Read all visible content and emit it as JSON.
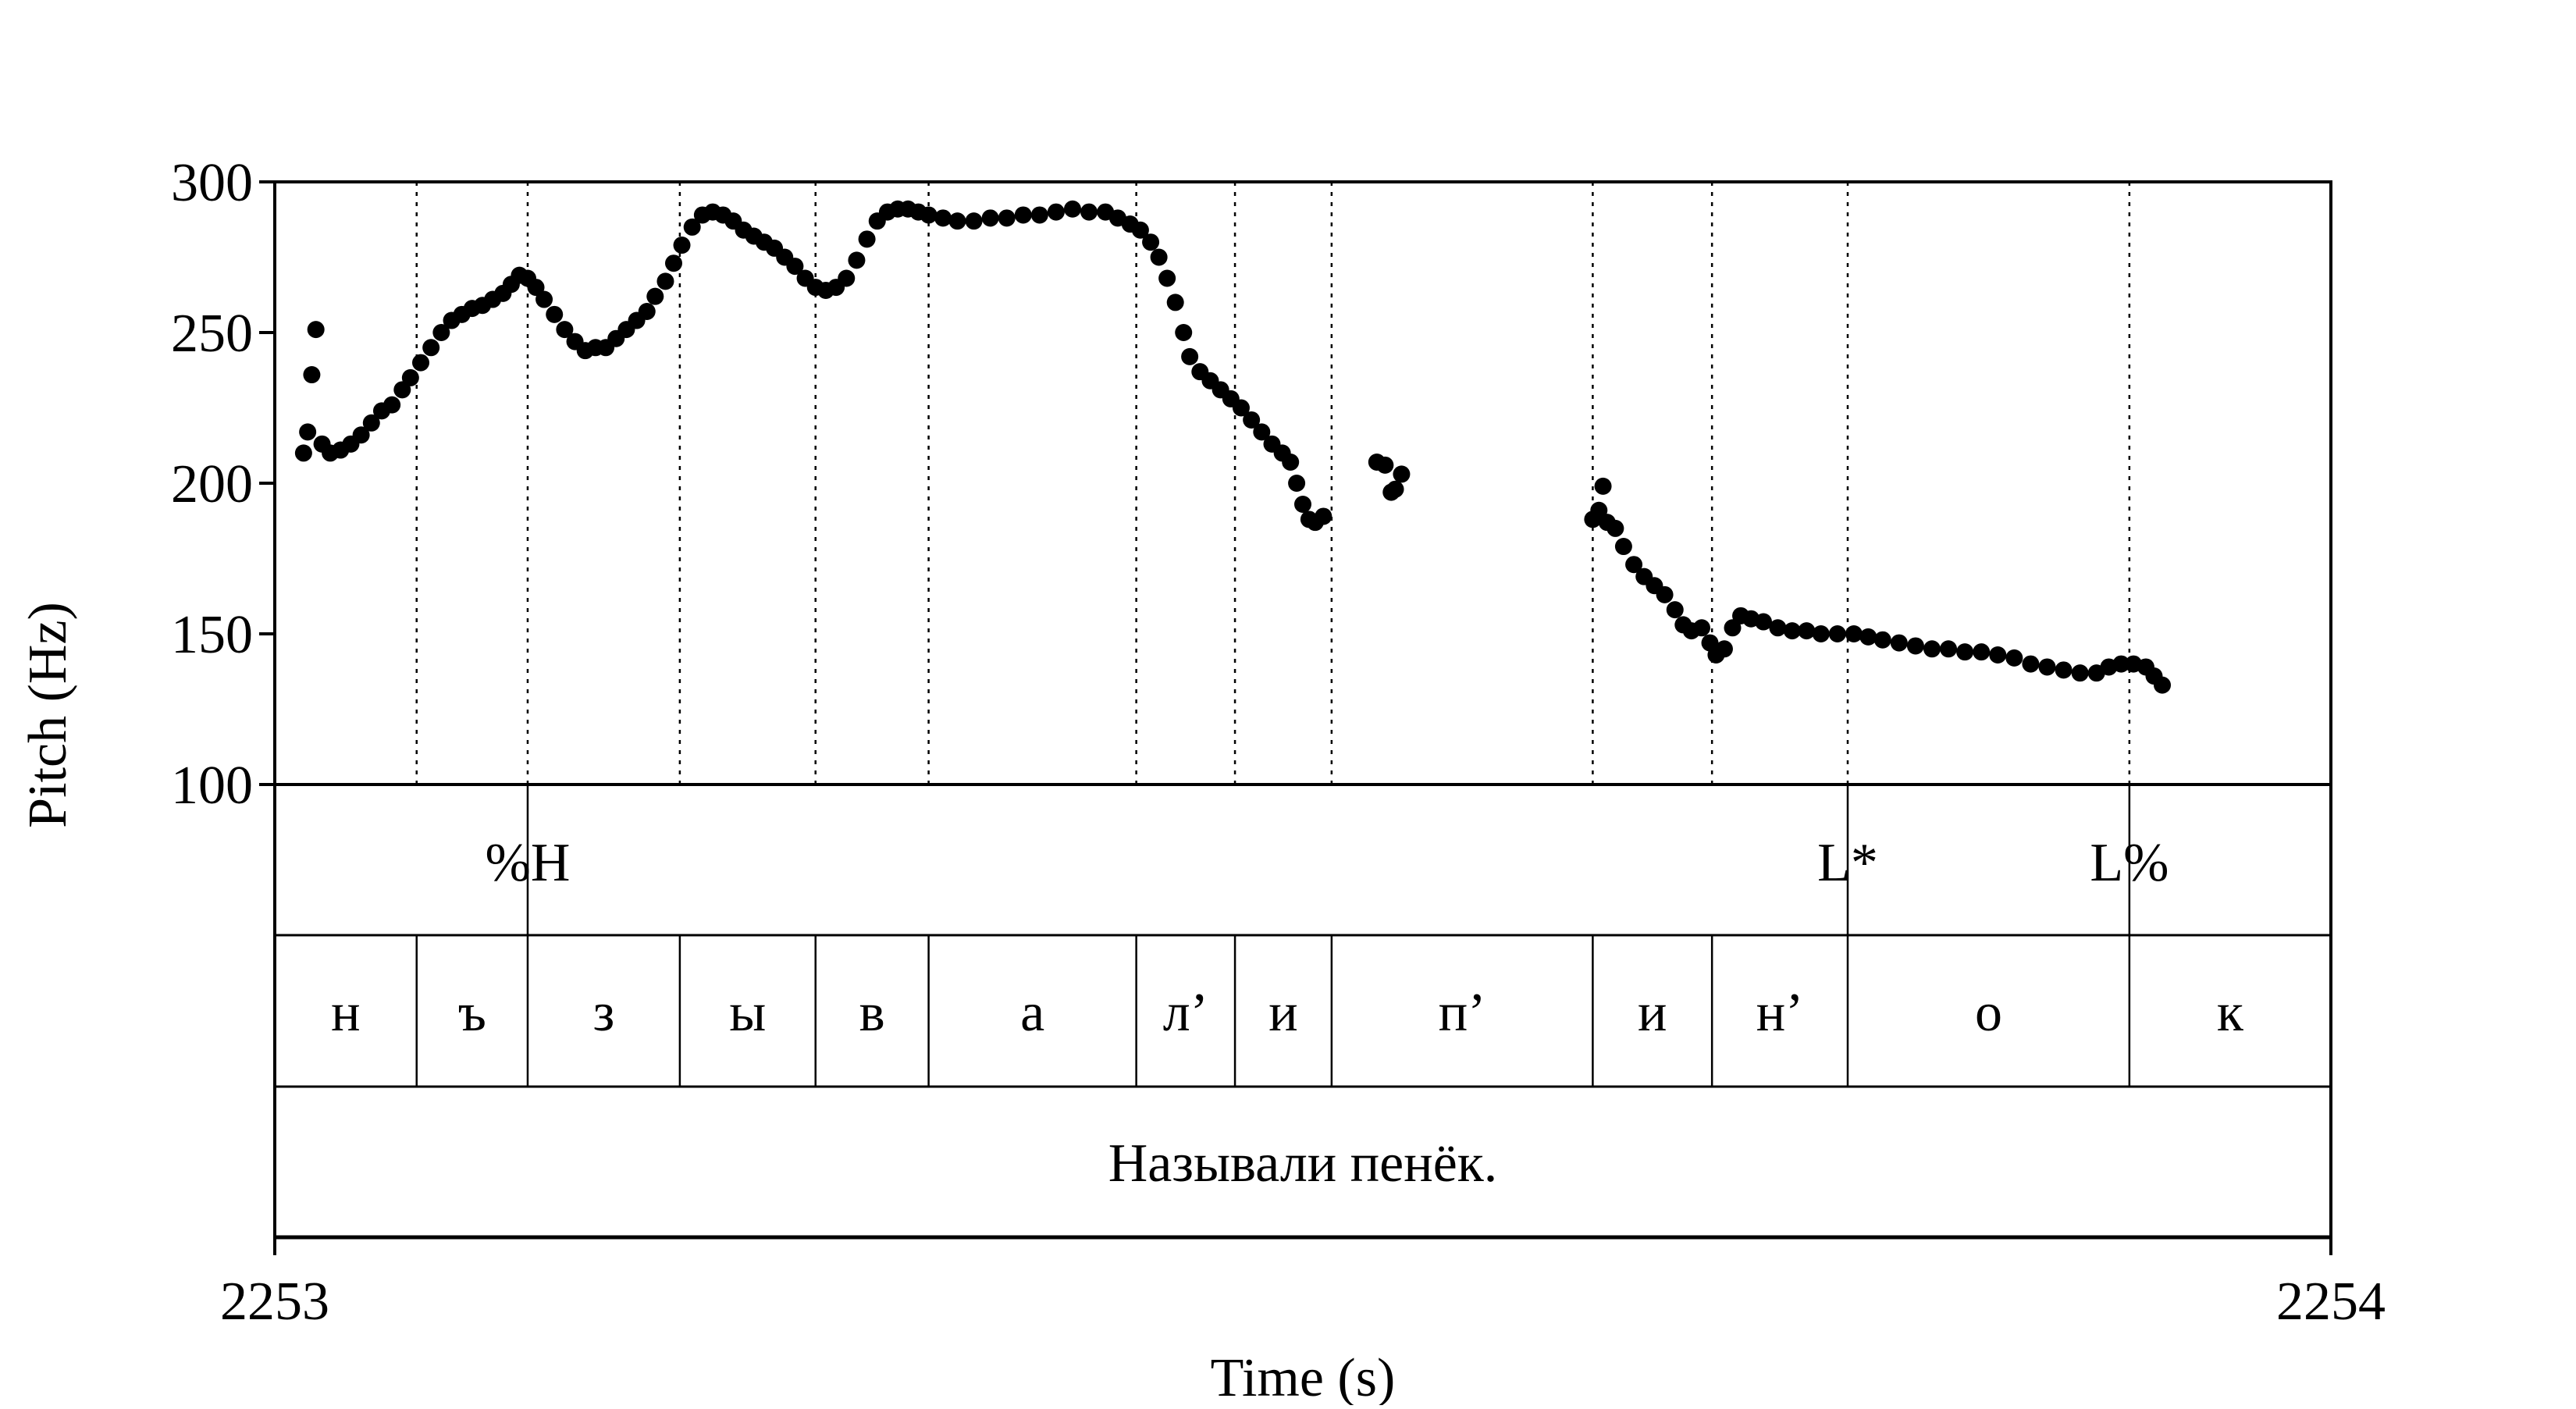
{
  "chart_data": {
    "type": "scatter",
    "title": "",
    "xlabel": "Time (s)",
    "ylabel": "Pitch (Hz)",
    "xlim": [
      2253,
      2254
    ],
    "ylim": [
      100,
      300
    ],
    "x_ticks": [
      "2253",
      "2254"
    ],
    "y_ticks": [
      "100",
      "150",
      "200",
      "250",
      "300"
    ],
    "grid": false,
    "marker_color": "#000000",
    "boundaries": [
      2253.069,
      2253.123,
      2253.197,
      2253.263,
      2253.318,
      2253.419,
      2253.467,
      2253.514,
      2253.641,
      2253.699,
      2253.765,
      2253.902
    ],
    "tones": [
      {
        "label": "%H",
        "time": 2253.123
      },
      {
        "label": "L*",
        "time": 2253.765
      },
      {
        "label": "L%",
        "time": 2253.902
      }
    ],
    "segments": [
      {
        "label": "н",
        "start": 2253.0,
        "end": 2253.069
      },
      {
        "label": "ъ",
        "start": 2253.069,
        "end": 2253.123
      },
      {
        "label": "з",
        "start": 2253.123,
        "end": 2253.197
      },
      {
        "label": "ы",
        "start": 2253.197,
        "end": 2253.263
      },
      {
        "label": "в",
        "start": 2253.263,
        "end": 2253.318
      },
      {
        "label": "а",
        "start": 2253.318,
        "end": 2253.419
      },
      {
        "label": "л’",
        "start": 2253.419,
        "end": 2253.467
      },
      {
        "label": "и",
        "start": 2253.467,
        "end": 2253.514
      },
      {
        "label": "п’",
        "start": 2253.514,
        "end": 2253.641
      },
      {
        "label": "и",
        "start": 2253.641,
        "end": 2253.699
      },
      {
        "label": "н’",
        "start": 2253.699,
        "end": 2253.765
      },
      {
        "label": "о",
        "start": 2253.765,
        "end": 2253.902
      },
      {
        "label": "к",
        "start": 2253.902,
        "end": 2254.0
      }
    ],
    "utterance": "Называли пенёк.",
    "pitch_points": [
      [
        2253.014,
        210
      ],
      [
        2253.016,
        217
      ],
      [
        2253.018,
        236
      ],
      [
        2253.02,
        251
      ],
      [
        2253.023,
        213
      ],
      [
        2253.027,
        210
      ],
      [
        2253.032,
        211
      ],
      [
        2253.037,
        213
      ],
      [
        2253.042,
        216
      ],
      [
        2253.047,
        220
      ],
      [
        2253.052,
        224
      ],
      [
        2253.057,
        226
      ],
      [
        2253.062,
        231
      ],
      [
        2253.066,
        235
      ],
      [
        2253.071,
        240
      ],
      [
        2253.076,
        245
      ],
      [
        2253.081,
        250
      ],
      [
        2253.086,
        254
      ],
      [
        2253.091,
        256
      ],
      [
        2253.096,
        258
      ],
      [
        2253.101,
        259
      ],
      [
        2253.106,
        261
      ],
      [
        2253.111,
        263
      ],
      [
        2253.115,
        266
      ],
      [
        2253.119,
        269
      ],
      [
        2253.123,
        268
      ],
      [
        2253.127,
        265
      ],
      [
        2253.131,
        261
      ],
      [
        2253.136,
        256
      ],
      [
        2253.141,
        251
      ],
      [
        2253.146,
        247
      ],
      [
        2253.151,
        244
      ],
      [
        2253.156,
        245
      ],
      [
        2253.161,
        245
      ],
      [
        2253.166,
        248
      ],
      [
        2253.171,
        251
      ],
      [
        2253.176,
        254
      ],
      [
        2253.181,
        257
      ],
      [
        2253.185,
        262
      ],
      [
        2253.19,
        267
      ],
      [
        2253.194,
        273
      ],
      [
        2253.198,
        279
      ],
      [
        2253.203,
        285
      ],
      [
        2253.208,
        289
      ],
      [
        2253.213,
        290
      ],
      [
        2253.218,
        289
      ],
      [
        2253.223,
        287
      ],
      [
        2253.228,
        284
      ],
      [
        2253.233,
        282
      ],
      [
        2253.238,
        280
      ],
      [
        2253.243,
        278
      ],
      [
        2253.248,
        275
      ],
      [
        2253.253,
        272
      ],
      [
        2253.258,
        268
      ],
      [
        2253.263,
        265
      ],
      [
        2253.268,
        264
      ],
      [
        2253.273,
        265
      ],
      [
        2253.278,
        268
      ],
      [
        2253.283,
        274
      ],
      [
        2253.288,
        281
      ],
      [
        2253.293,
        287
      ],
      [
        2253.298,
        290
      ],
      [
        2253.303,
        291
      ],
      [
        2253.308,
        291
      ],
      [
        2253.313,
        290
      ],
      [
        2253.318,
        289
      ],
      [
        2253.325,
        288
      ],
      [
        2253.332,
        287
      ],
      [
        2253.34,
        287
      ],
      [
        2253.348,
        288
      ],
      [
        2253.356,
        288
      ],
      [
        2253.364,
        289
      ],
      [
        2253.372,
        289
      ],
      [
        2253.38,
        290
      ],
      [
        2253.388,
        291
      ],
      [
        2253.396,
        290
      ],
      [
        2253.404,
        290
      ],
      [
        2253.41,
        288
      ],
      [
        2253.416,
        286
      ],
      [
        2253.421,
        284
      ],
      [
        2253.426,
        280
      ],
      [
        2253.43,
        275
      ],
      [
        2253.434,
        268
      ],
      [
        2253.438,
        260
      ],
      [
        2253.442,
        250
      ],
      [
        2253.445,
        242
      ],
      [
        2253.45,
        237
      ],
      [
        2253.455,
        234
      ],
      [
        2253.46,
        231
      ],
      [
        2253.465,
        228
      ],
      [
        2253.47,
        225
      ],
      [
        2253.475,
        221
      ],
      [
        2253.48,
        217
      ],
      [
        2253.485,
        213
      ],
      [
        2253.49,
        210
      ],
      [
        2253.494,
        207
      ],
      [
        2253.497,
        200
      ],
      [
        2253.5,
        193
      ],
      [
        2253.503,
        188
      ],
      [
        2253.506,
        187
      ],
      [
        2253.51,
        189
      ],
      [
        2253.536,
        207
      ],
      [
        2253.54,
        206
      ],
      [
        2253.543,
        197
      ],
      [
        2253.545,
        198
      ],
      [
        2253.548,
        203
      ],
      [
        2253.641,
        188
      ],
      [
        2253.644,
        191
      ],
      [
        2253.646,
        199
      ],
      [
        2253.648,
        187
      ],
      [
        2253.652,
        185
      ],
      [
        2253.656,
        179
      ],
      [
        2253.661,
        173
      ],
      [
        2253.666,
        169
      ],
      [
        2253.671,
        166
      ],
      [
        2253.676,
        163
      ],
      [
        2253.681,
        158
      ],
      [
        2253.685,
        153
      ],
      [
        2253.689,
        151
      ],
      [
        2253.694,
        152
      ],
      [
        2253.698,
        147
      ],
      [
        2253.701,
        143
      ],
      [
        2253.705,
        145
      ],
      [
        2253.709,
        152
      ],
      [
        2253.713,
        156
      ],
      [
        2253.718,
        155
      ],
      [
        2253.724,
        154
      ],
      [
        2253.731,
        152
      ],
      [
        2253.738,
        151
      ],
      [
        2253.745,
        151
      ],
      [
        2253.752,
        150
      ],
      [
        2253.76,
        150
      ],
      [
        2253.768,
        150
      ],
      [
        2253.775,
        149
      ],
      [
        2253.782,
        148
      ],
      [
        2253.79,
        147
      ],
      [
        2253.798,
        146
      ],
      [
        2253.806,
        145
      ],
      [
        2253.814,
        145
      ],
      [
        2253.822,
        144
      ],
      [
        2253.83,
        144
      ],
      [
        2253.838,
        143
      ],
      [
        2253.846,
        142
      ],
      [
        2253.854,
        140
      ],
      [
        2253.862,
        139
      ],
      [
        2253.87,
        138
      ],
      [
        2253.878,
        137
      ],
      [
        2253.886,
        137
      ],
      [
        2253.892,
        139
      ],
      [
        2253.898,
        140
      ],
      [
        2253.904,
        140
      ],
      [
        2253.91,
        139
      ],
      [
        2253.914,
        136
      ],
      [
        2253.918,
        133
      ]
    ]
  }
}
